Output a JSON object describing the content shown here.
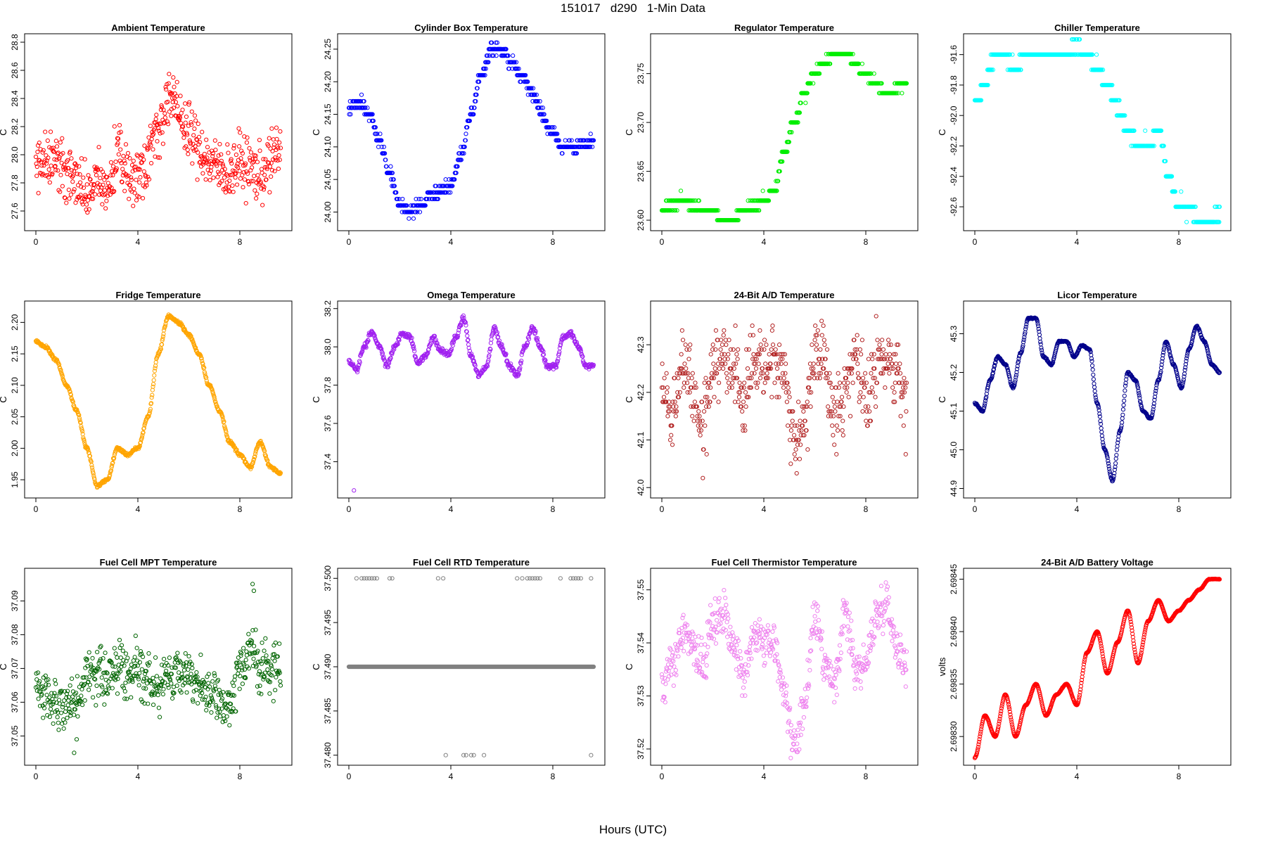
{
  "figure": {
    "title": "151017   d290   1-Min Data",
    "xlabel": "Hours (UTC)",
    "x_range": [
      0,
      9.6
    ],
    "x_ticks": [
      0,
      4,
      8
    ]
  },
  "chart_data": [
    {
      "type": "scatter",
      "title": "Ambient Temperature",
      "ylabel": "C",
      "color": "#ff0000",
      "ylim": [
        27.5,
        28.82
      ],
      "yticks": [
        27.6,
        27.8,
        28.0,
        28.2,
        28.4,
        28.6,
        28.8
      ],
      "pattern": "noisy",
      "x": [
        0,
        0.4,
        0.8,
        1.2,
        1.6,
        2.0,
        2.4,
        2.8,
        3.2,
        3.6,
        4.0,
        4.4,
        4.8,
        5.2,
        5.6,
        6.0,
        6.4,
        6.8,
        7.2,
        7.6,
        8.0,
        8.4,
        8.8,
        9.2,
        9.6
      ],
      "y": [
        27.92,
        28.0,
        27.95,
        27.88,
        27.8,
        27.72,
        27.8,
        27.75,
        28.0,
        27.85,
        27.85,
        28.0,
        28.2,
        28.4,
        28.3,
        28.15,
        28.05,
        27.95,
        27.9,
        27.88,
        27.95,
        27.9,
        27.85,
        27.95,
        28.05
      ],
      "noise": 0.2
    },
    {
      "type": "scatter",
      "title": "Cylinder Box Temperature",
      "ylabel": "C",
      "color": "#0000ff",
      "ylim": [
        23.98,
        24.265
      ],
      "yticks": [
        24.0,
        24.05,
        24.1,
        24.15,
        24.2,
        24.25
      ],
      "pattern": "quantized",
      "step": 0.01,
      "x": [
        0,
        0.4,
        0.8,
        1.2,
        1.6,
        2.0,
        2.4,
        2.8,
        3.2,
        3.6,
        4.0,
        4.4,
        4.8,
        5.2,
        5.6,
        6.0,
        6.4,
        6.8,
        7.2,
        7.6,
        8.0,
        8.4,
        8.8,
        9.2,
        9.6
      ],
      "y": [
        24.16,
        24.17,
        24.15,
        24.11,
        24.06,
        24.01,
        24.0,
        24.01,
        24.03,
        24.03,
        24.04,
        24.09,
        24.15,
        24.21,
        24.25,
        24.25,
        24.23,
        24.21,
        24.18,
        24.15,
        24.12,
        24.1,
        24.1,
        24.1,
        24.11
      ],
      "noise": 0.012
    },
    {
      "type": "scatter",
      "title": "Regulator Temperature",
      "ylabel": "C",
      "color": "#00ee00",
      "ylim": [
        23.595,
        23.785
      ],
      "yticks": [
        23.6,
        23.65,
        23.7,
        23.75
      ],
      "pattern": "quantized",
      "step": 0.01,
      "x": [
        0,
        0.4,
        0.8,
        1.2,
        1.6,
        2.0,
        2.4,
        2.8,
        3.2,
        3.6,
        4.0,
        4.4,
        4.8,
        5.2,
        5.6,
        6.0,
        6.4,
        6.8,
        7.2,
        7.6,
        8.0,
        8.4,
        8.8,
        9.2,
        9.6
      ],
      "y": [
        23.61,
        23.615,
        23.62,
        23.615,
        23.61,
        23.61,
        23.6,
        23.6,
        23.61,
        23.615,
        23.62,
        23.63,
        23.67,
        23.7,
        23.73,
        23.75,
        23.76,
        23.77,
        23.77,
        23.76,
        23.75,
        23.74,
        23.73,
        23.735,
        23.74
      ],
      "noise": 0.006
    },
    {
      "type": "scatter",
      "title": "Chiller Temperature",
      "ylabel": "C",
      "color": "#00ffff",
      "ylim": [
        -92.72,
        -91.5
      ],
      "yticks": [
        -92.6,
        -92.4,
        -92.2,
        -92.0,
        -91.8,
        -91.6
      ],
      "pattern": "quantized",
      "step": 0.1,
      "x": [
        0,
        0.4,
        0.8,
        1.2,
        1.6,
        2.0,
        2.4,
        2.8,
        3.2,
        3.6,
        4.0,
        4.4,
        4.8,
        5.2,
        5.6,
        6.0,
        6.4,
        6.8,
        7.2,
        7.6,
        8.0,
        8.4,
        8.8,
        9.2,
        9.6
      ],
      "y": [
        -91.9,
        -91.8,
        -91.6,
        -91.6,
        -91.7,
        -91.6,
        -91.6,
        -91.6,
        -91.6,
        -91.6,
        -91.55,
        -91.6,
        -91.7,
        -91.8,
        -91.95,
        -92.1,
        -92.2,
        -92.2,
        -92.1,
        -92.4,
        -92.6,
        -92.6,
        -92.7,
        -92.7,
        -92.65
      ],
      "noise": 0.05
    },
    {
      "type": "scatter",
      "title": "Fridge Temperature",
      "ylabel": "C",
      "color": "#ffa500",
      "ylim": [
        1.93,
        2.225
      ],
      "yticks": [
        1.95,
        2.0,
        2.05,
        2.1,
        2.15,
        2.2
      ],
      "pattern": "smooth",
      "x": [
        0,
        0.4,
        0.8,
        1.2,
        1.6,
        2.0,
        2.4,
        2.8,
        3.2,
        3.6,
        4.0,
        4.4,
        4.8,
        5.2,
        5.6,
        6.0,
        6.4,
        6.8,
        7.2,
        7.6,
        8.0,
        8.4,
        8.8,
        9.2,
        9.6
      ],
      "y": [
        2.17,
        2.16,
        2.14,
        2.1,
        2.06,
        2.0,
        1.94,
        1.95,
        2.0,
        1.99,
        2.0,
        2.05,
        2.15,
        2.21,
        2.2,
        2.18,
        2.15,
        2.1,
        2.06,
        2.01,
        1.99,
        1.97,
        2.01,
        1.97,
        1.96
      ],
      "noise": 0.004
    },
    {
      "type": "scatter",
      "title": "Omega Temperature",
      "ylabel": "C",
      "color": "#a020f0",
      "ylim": [
        37.24,
        38.21
      ],
      "yticks": [
        37.4,
        37.6,
        37.8,
        38.0,
        38.2
      ],
      "pattern": "smooth",
      "x": [
        0,
        0.3,
        0.6,
        0.9,
        1.2,
        1.5,
        1.8,
        2.1,
        2.4,
        2.7,
        3.0,
        3.3,
        3.6,
        3.9,
        4.2,
        4.5,
        4.8,
        5.1,
        5.4,
        5.7,
        6.0,
        6.3,
        6.6,
        6.9,
        7.2,
        7.5,
        7.8,
        8.1,
        8.4,
        8.7,
        9.0,
        9.3,
        9.6
      ],
      "y": [
        37.92,
        37.88,
        38.0,
        38.08,
        38.0,
        37.9,
        38.0,
        38.07,
        38.05,
        37.92,
        37.95,
        38.05,
        37.98,
        37.96,
        38.05,
        38.15,
        37.95,
        37.85,
        37.9,
        38.1,
        38.0,
        37.9,
        37.85,
        38.0,
        38.1,
        38.0,
        37.9,
        37.9,
        38.05,
        38.07,
        38.0,
        37.9,
        37.9
      ],
      "noise": 0.025,
      "outliers": [
        [
          0.2,
          37.25
        ]
      ]
    },
    {
      "type": "scatter",
      "title": "24-Bit A/D Temperature",
      "ylabel": "C",
      "color": "#b22222",
      "ylim": [
        41.99,
        42.38
      ],
      "yticks": [
        42.0,
        42.1,
        42.2,
        42.3
      ],
      "pattern": "quantized",
      "step": 0.01,
      "x": [
        0,
        0.4,
        0.8,
        1.2,
        1.6,
        2.0,
        2.4,
        2.8,
        3.2,
        3.6,
        4.0,
        4.4,
        4.8,
        5.2,
        5.6,
        6.0,
        6.4,
        6.8,
        7.2,
        7.6,
        8.0,
        8.4,
        8.8,
        9.2,
        9.6
      ],
      "y": [
        42.22,
        42.15,
        42.25,
        42.2,
        42.12,
        42.25,
        42.27,
        42.25,
        42.2,
        42.27,
        42.27,
        42.27,
        42.24,
        42.1,
        42.15,
        42.27,
        42.25,
        42.15,
        42.2,
        42.27,
        42.18,
        42.25,
        42.27,
        42.25,
        42.18
      ],
      "noise": 0.09
    },
    {
      "type": "scatter",
      "title": "Licor Temperature",
      "ylabel": "C",
      "color": "#00008b",
      "ylim": [
        44.89,
        45.37
      ],
      "yticks": [
        44.9,
        45.0,
        45.1,
        45.2,
        45.3
      ],
      "pattern": "smooth",
      "x": [
        0,
        0.3,
        0.6,
        0.9,
        1.2,
        1.5,
        1.8,
        2.1,
        2.4,
        2.7,
        3.0,
        3.3,
        3.6,
        3.9,
        4.2,
        4.5,
        4.8,
        5.1,
        5.4,
        5.7,
        6.0,
        6.3,
        6.6,
        6.9,
        7.2,
        7.5,
        7.8,
        8.1,
        8.4,
        8.7,
        9.0,
        9.3,
        9.6
      ],
      "y": [
        45.12,
        45.1,
        45.18,
        45.24,
        45.22,
        45.16,
        45.25,
        45.34,
        45.34,
        45.24,
        45.22,
        45.28,
        45.28,
        45.24,
        45.27,
        45.26,
        45.12,
        45.0,
        44.92,
        45.05,
        45.2,
        45.18,
        45.1,
        45.08,
        45.18,
        45.28,
        45.22,
        45.16,
        45.26,
        45.32,
        45.28,
        45.22,
        45.2
      ],
      "noise": 0.003
    },
    {
      "type": "scatter",
      "title": "Fuel Cell MPT Temperature",
      "ylabel": "C",
      "color": "#006400",
      "ylim": [
        37.043,
        37.098
      ],
      "yticks": [
        37.05,
        37.06,
        37.07,
        37.08,
        37.09
      ],
      "pattern": "noisy",
      "x": [
        0,
        0.4,
        0.8,
        1.2,
        1.6,
        2.0,
        2.4,
        2.8,
        3.2,
        3.6,
        4.0,
        4.4,
        4.8,
        5.2,
        5.6,
        6.0,
        6.4,
        6.8,
        7.2,
        7.6,
        8.0,
        8.4,
        8.8,
        9.2,
        9.6
      ],
      "y": [
        37.066,
        37.062,
        37.059,
        37.058,
        37.06,
        37.068,
        37.07,
        37.066,
        37.072,
        37.068,
        37.072,
        37.066,
        37.064,
        37.068,
        37.068,
        37.07,
        37.064,
        37.062,
        37.06,
        37.058,
        37.07,
        37.076,
        37.07,
        37.069,
        37.072
      ],
      "noise": 0.007,
      "outliers": [
        [
          1.5,
          37.045
        ],
        [
          1.6,
          37.049
        ],
        [
          8.5,
          37.095
        ],
        [
          8.55,
          37.093
        ]
      ]
    },
    {
      "type": "scatter",
      "title": "Fuel Cell RTD Temperature",
      "ylabel": "C",
      "color": "#808080",
      "ylim": [
        37.4795,
        37.5005
      ],
      "yticks": [
        37.48,
        37.485,
        37.49,
        37.495,
        37.5
      ],
      "pattern": "flat",
      "x": [
        0,
        9.6
      ],
      "y": [
        37.49,
        37.49
      ],
      "noise": 0,
      "outliers": [
        [
          0.3,
          37.5
        ],
        [
          0.5,
          37.5
        ],
        [
          0.6,
          37.5
        ],
        [
          0.7,
          37.5
        ],
        [
          0.8,
          37.5
        ],
        [
          0.9,
          37.5
        ],
        [
          1.0,
          37.5
        ],
        [
          1.1,
          37.5
        ],
        [
          1.6,
          37.5
        ],
        [
          1.7,
          37.5
        ],
        [
          3.5,
          37.5
        ],
        [
          3.7,
          37.5
        ],
        [
          6.6,
          37.5
        ],
        [
          6.8,
          37.5
        ],
        [
          7.0,
          37.5
        ],
        [
          7.1,
          37.5
        ],
        [
          7.2,
          37.5
        ],
        [
          7.3,
          37.5
        ],
        [
          7.4,
          37.5
        ],
        [
          7.5,
          37.5
        ],
        [
          8.3,
          37.5
        ],
        [
          8.7,
          37.5
        ],
        [
          8.8,
          37.5
        ],
        [
          8.9,
          37.5
        ],
        [
          9.0,
          37.5
        ],
        [
          9.1,
          37.5
        ],
        [
          9.5,
          37.5
        ],
        [
          3.8,
          37.48
        ],
        [
          4.5,
          37.48
        ],
        [
          4.6,
          37.48
        ],
        [
          4.8,
          37.48
        ],
        [
          4.9,
          37.48
        ],
        [
          5.3,
          37.48
        ],
        [
          9.5,
          37.48
        ]
      ]
    },
    {
      "type": "scatter",
      "title": "Fuel Cell Thermistor Temperature",
      "ylabel": "C",
      "color": "#ee82ee",
      "ylim": [
        37.518,
        37.553
      ],
      "yticks": [
        37.52,
        37.53,
        37.54,
        37.55
      ],
      "pattern": "noisy",
      "x": [
        0,
        0.4,
        0.8,
        1.2,
        1.6,
        2.0,
        2.4,
        2.8,
        3.2,
        3.6,
        4.0,
        4.4,
        4.8,
        5.2,
        5.6,
        6.0,
        6.4,
        6.8,
        7.2,
        7.6,
        8.0,
        8.4,
        8.8,
        9.2,
        9.6
      ],
      "y": [
        37.532,
        37.536,
        37.542,
        37.538,
        37.536,
        37.544,
        37.546,
        37.54,
        37.534,
        37.542,
        37.54,
        37.54,
        37.53,
        37.52,
        37.528,
        37.545,
        37.535,
        37.532,
        37.546,
        37.535,
        37.536,
        37.545,
        37.548,
        37.54,
        37.535
      ],
      "noise": 0.004
    },
    {
      "type": "scatter",
      "title": "24-Bit A/D Battery Voltage",
      "ylabel": "volts",
      "color": "#ff0000",
      "ylim": [
        2.698278,
        2.698455
      ],
      "yticks": [
        2.6983,
        2.69835,
        2.6984,
        2.69845
      ],
      "pattern": "smooth",
      "x": [
        0,
        0.4,
        0.8,
        1.2,
        1.6,
        2.0,
        2.4,
        2.8,
        3.2,
        3.6,
        4.0,
        4.4,
        4.8,
        5.2,
        5.6,
        6.0,
        6.4,
        6.8,
        7.2,
        7.6,
        8.0,
        8.4,
        8.8,
        9.2,
        9.6
      ],
      "y": [
        2.69828,
        2.69832,
        2.6983,
        2.69834,
        2.6983,
        2.69833,
        2.69835,
        2.69832,
        2.69834,
        2.69835,
        2.69833,
        2.69838,
        2.6984,
        2.69836,
        2.69839,
        2.69842,
        2.69837,
        2.69841,
        2.69843,
        2.69841,
        2.69842,
        2.69843,
        2.69844,
        2.69845,
        2.69845
      ],
      "noise": 5e-07
    }
  ]
}
